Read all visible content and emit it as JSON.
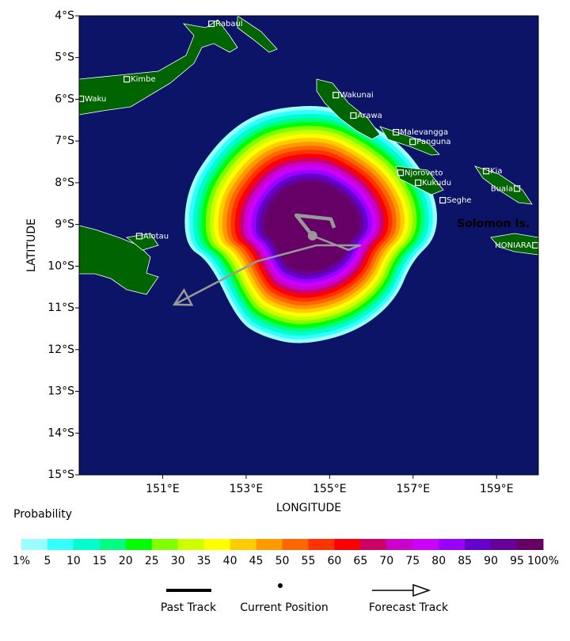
{
  "map": {
    "xlabel": "LONGITUDE",
    "ylabel": "LATITUDE",
    "xlim": [
      149,
      160
    ],
    "ylim": [
      -15,
      -4
    ],
    "xticks": [
      {
        "value": 151,
        "label": "151°E"
      },
      {
        "value": 153,
        "label": "153°E"
      },
      {
        "value": 155,
        "label": "155°E"
      },
      {
        "value": 157,
        "label": "157°E"
      },
      {
        "value": 159,
        "label": "159°E"
      }
    ],
    "yticks": [
      {
        "value": -4,
        "label": "4°S"
      },
      {
        "value": -5,
        "label": "5°S"
      },
      {
        "value": -6,
        "label": "6°S"
      },
      {
        "value": -7,
        "label": "7°S"
      },
      {
        "value": -8,
        "label": "8°S"
      },
      {
        "value": -9,
        "label": "9°S"
      },
      {
        "value": -10,
        "label": "10°S"
      },
      {
        "value": -11,
        "label": "11°S"
      },
      {
        "value": -12,
        "label": "12°S"
      },
      {
        "value": -13,
        "label": "13°S"
      },
      {
        "value": -14,
        "label": "14°S"
      },
      {
        "value": -15,
        "label": "15°S"
      }
    ],
    "places": [
      {
        "name": "Rabaul",
        "lon": 152.17,
        "lat": -4.19
      },
      {
        "name": "Kimbe",
        "lon": 150.14,
        "lat": -5.52
      },
      {
        "name": "Waku",
        "lon": 149.04,
        "lat": -5.99
      },
      {
        "name": "Wakunai",
        "lon": 155.15,
        "lat": -5.9
      },
      {
        "name": "Arawa",
        "lon": 155.57,
        "lat": -6.39
      },
      {
        "name": "Malevangga",
        "lon": 156.59,
        "lat": -6.79
      },
      {
        "name": "Panguna",
        "lon": 156.99,
        "lat": -7.02
      },
      {
        "name": "Njoroveto",
        "lon": 156.7,
        "lat": -7.76
      },
      {
        "name": "Kukudu",
        "lon": 157.12,
        "lat": -8.0
      },
      {
        "name": "Seghe",
        "lon": 157.71,
        "lat": -8.42
      },
      {
        "name": "Kia",
        "lon": 158.75,
        "lat": -7.72
      },
      {
        "name": "Buala",
        "lon": 159.49,
        "lat": -8.14
      },
      {
        "name": "HONIARA",
        "lon": 159.93,
        "lat": -9.5
      },
      {
        "name": "Alotau",
        "lon": 150.44,
        "lat": -9.28
      }
    ],
    "region_label": {
      "name": "Solomon Is.",
      "lon": 158.05,
      "lat": -8.99,
      "color": "#22aa22"
    },
    "past_track": {
      "lon": [
        155.11,
        155.03,
        154.2,
        154.59
      ],
      "lat": [
        -9.08,
        -8.87,
        -8.78,
        -9.27
      ]
    },
    "current_position": {
      "lon": 154.59,
      "lat": -9.27
    },
    "forecast_track": {
      "lon": [
        154.59,
        155.45,
        155.73,
        154.69,
        153.27,
        151.28
      ],
      "lat": [
        -9.27,
        -9.61,
        -9.5,
        -9.5,
        -9.88,
        -10.92
      ]
    }
  },
  "colorbar": {
    "title": "Probability",
    "ticks": [
      {
        "value": 1,
        "label": "1%"
      },
      5,
      10,
      15,
      20,
      25,
      30,
      35,
      40,
      45,
      50,
      55,
      60,
      65,
      70,
      75,
      80,
      85,
      90,
      95,
      {
        "value": 100,
        "label": "100%"
      }
    ],
    "colors": [
      "#99ffff",
      "#33ffff",
      "#00ffcc",
      "#00ff80",
      "#00ff00",
      "#80ff00",
      "#ccff00",
      "#ffff00",
      "#ffcc00",
      "#ff9900",
      "#ff6600",
      "#ff3300",
      "#ff0000",
      "#cc0066",
      "#cc00cc",
      "#cc00ff",
      "#9900ff",
      "#6600cc",
      "#660099",
      "#660066"
    ]
  },
  "legend": {
    "items": [
      "Past Track",
      "Current Position",
      "Forecast Track"
    ]
  }
}
